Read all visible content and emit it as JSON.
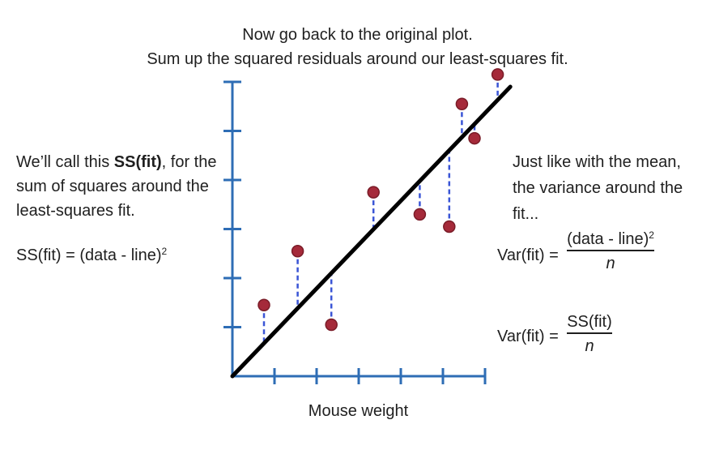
{
  "header": {
    "line1": "Now go back to the original plot.",
    "line2": "Sum up the squared residuals around our least-squares fit."
  },
  "left_text": {
    "line1_pre": "We’ll call this ",
    "line1_bold": "SS(fit)",
    "line1_post": ", for the",
    "line2": "sum of squares around the",
    "line3": "least-squares fit.",
    "formula_pre": "SS(fit) = (data - line)",
    "formula_exp": "2"
  },
  "right_text": {
    "line1": "Just like with the mean,",
    "line2": "the variance around the",
    "line3": "fit...",
    "var_label": "Var(fit) =",
    "frac1_num": "(data - line)",
    "frac1_exp": "2",
    "frac1_den": "n",
    "var_label2": "Var(fit) =",
    "frac2_num": "SS(fit)",
    "frac2_den": "n"
  },
  "chart_data": {
    "type": "scatter",
    "xlabel": "Mouse weight",
    "ylabel": "",
    "xlim": [
      0,
      6
    ],
    "ylim": [
      0,
      6
    ],
    "x_ticks": 6,
    "y_ticks": 6,
    "points": [
      {
        "x": 0.75,
        "y": 1.45
      },
      {
        "x": 1.55,
        "y": 2.55
      },
      {
        "x": 2.35,
        "y": 1.05
      },
      {
        "x": 3.35,
        "y": 3.75
      },
      {
        "x": 4.45,
        "y": 3.3
      },
      {
        "x": 5.15,
        "y": 3.05
      },
      {
        "x": 5.45,
        "y": 5.55
      },
      {
        "x": 5.75,
        "y": 4.85
      },
      {
        "x": 6.3,
        "y": 6.15
      }
    ],
    "fit_line": {
      "x0": 0,
      "y0": 0,
      "x1": 6.6,
      "y1": 5.9
    },
    "point_color": "#a52a3a",
    "point_edge": "#7a1c28",
    "residual_color": "#3a55d6",
    "axis_color": "#2e6db5",
    "line_color": "#000000"
  }
}
